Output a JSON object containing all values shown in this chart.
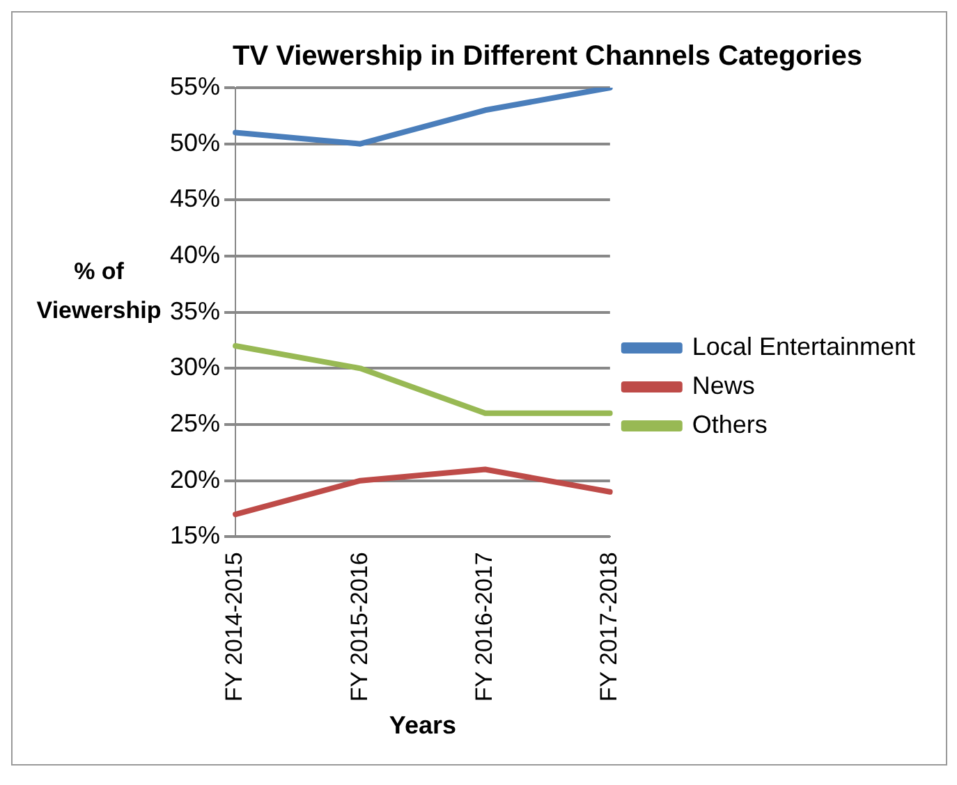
{
  "chart_data": {
    "type": "line",
    "title": "TV Viewership in Different Channels Categories",
    "xlabel": "Years",
    "ylabel": "% of Viewership",
    "categories": [
      "FY 2014-2015",
      "FY 2015-2016",
      "FY 2016-2017",
      "FY 2017-2018"
    ],
    "series": [
      {
        "name": "Local Entertainment",
        "color": "#4a7ebb",
        "values": [
          51,
          50,
          53,
          55
        ]
      },
      {
        "name": "News",
        "color": "#be4b48",
        "values": [
          17,
          20,
          21,
          19
        ]
      },
      {
        "name": "Others",
        "color": "#98b954",
        "values": [
          32,
          30,
          26,
          26
        ]
      }
    ],
    "ylim": [
      15,
      55
    ],
    "yticks": [
      {
        "value": 15,
        "label": "15%"
      },
      {
        "value": 20,
        "label": "20%"
      },
      {
        "value": 25,
        "label": "25%"
      },
      {
        "value": 30,
        "label": "30%"
      },
      {
        "value": 35,
        "label": "35%"
      },
      {
        "value": 40,
        "label": "40%"
      },
      {
        "value": 45,
        "label": "45%"
      },
      {
        "value": 50,
        "label": "50%"
      },
      {
        "value": 55,
        "label": "55%"
      }
    ],
    "grid": "y",
    "legend": "right",
    "marker": "none",
    "line_style": "solid"
  }
}
